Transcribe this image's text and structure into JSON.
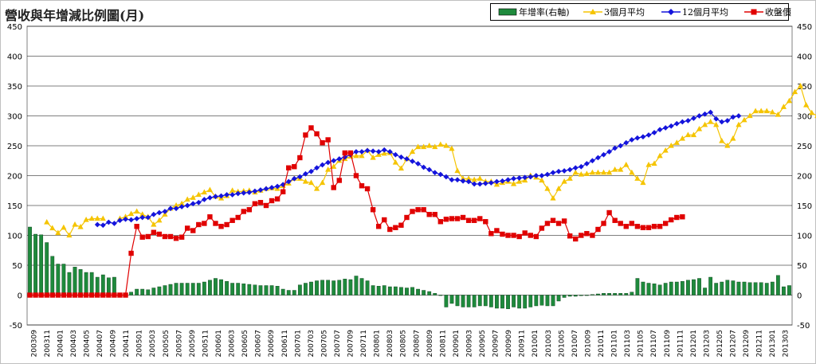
{
  "chart_data": {
    "type": "bar+line",
    "title": "營收與年增減比例圖(月)",
    "ylim": [
      -50,
      450
    ],
    "yticks": [
      -50,
      0,
      50,
      100,
      150,
      200,
      250,
      300,
      350,
      400,
      450
    ],
    "grid": true,
    "legend_position": "top-right",
    "colors": {
      "bar": "#1e8a3c",
      "ma3": "#f5c400",
      "ma12": "#1414dc",
      "price": "#e00000"
    },
    "x_labels": [
      "200309",
      "200311",
      "200401",
      "200403",
      "200405",
      "200407",
      "200409",
      "200411",
      "200501",
      "200503",
      "200505",
      "200507",
      "200509",
      "200511",
      "200601",
      "200603",
      "200605",
      "200607",
      "200609",
      "200611",
      "200701",
      "200703",
      "200705",
      "200707",
      "200709",
      "200711",
      "200801",
      "200803",
      "200805",
      "200807",
      "200809",
      "200811",
      "200901",
      "200903",
      "200905",
      "200907",
      "200909",
      "200911",
      "201001",
      "201003",
      "201005",
      "201007",
      "201009",
      "201011",
      "201101",
      "201103",
      "201105",
      "201107",
      "201109",
      "201111",
      "201201",
      "201203",
      "201205",
      "201207",
      "201209",
      "201211",
      "201301",
      "201303"
    ],
    "series": [
      {
        "name": "年增率(右軸)",
        "kind": "bar",
        "values": [
          114,
          102,
          101,
          88,
          65,
          52,
          52,
          38,
          47,
          43,
          38,
          38,
          30,
          34,
          29,
          30,
          0,
          0,
          5,
          10,
          10,
          9,
          12,
          14,
          16,
          18,
          20,
          20,
          20,
          20,
          20,
          22,
          25,
          28,
          26,
          23,
          20,
          20,
          19,
          18,
          17,
          16,
          16,
          16,
          15,
          10,
          8,
          8,
          17,
          20,
          22,
          24,
          25,
          25,
          24,
          25,
          27,
          26,
          32,
          28,
          24,
          16,
          15,
          16,
          14,
          14,
          13,
          12,
          13,
          10,
          8,
          6,
          3,
          0,
          -20,
          -14,
          -18,
          -20,
          -20,
          -20,
          -18,
          -18,
          -20,
          -22,
          -22,
          -23,
          -20,
          -22,
          -22,
          -20,
          -18,
          -17,
          -18,
          -18,
          -10,
          -4,
          -2,
          -2,
          -1,
          0,
          1,
          2,
          3,
          3,
          3,
          3,
          3,
          5,
          28,
          22,
          20,
          19,
          17,
          20,
          22,
          22,
          23,
          25,
          26,
          28,
          12,
          30,
          20,
          22,
          25,
          24,
          22,
          22,
          21,
          21,
          21,
          20,
          22,
          33,
          14,
          16
        ]
      },
      {
        "name": "3個月平均",
        "kind": "line",
        "values": [
          null,
          null,
          null,
          122,
          112,
          104,
          113,
          100,
          118,
          114,
          126,
          128,
          128,
          128,
          null,
          null,
          128,
          131,
          136,
          140,
          135,
          131,
          118,
          125,
          135,
          145,
          150,
          153,
          160,
          163,
          168,
          172,
          176,
          165,
          162,
          166,
          175,
          173,
          174,
          175,
          172,
          175,
          178,
          179,
          178,
          183,
          187,
          195,
          195,
          190,
          188,
          178,
          188,
          210,
          215,
          225,
          228,
          232,
          233,
          233,
          242,
          230,
          235,
          237,
          238,
          222,
          212,
          228,
          240,
          248,
          248,
          250,
          248,
          252,
          250,
          245,
          208,
          195,
          195,
          193,
          195,
          190,
          190,
          185,
          188,
          190,
          186,
          190,
          192,
          200,
          197,
          192,
          178,
          162,
          178,
          190,
          195,
          205,
          202,
          203,
          205,
          205,
          205,
          205,
          210,
          210,
          218,
          205,
          195,
          188,
          218,
          220,
          233,
          242,
          250,
          255,
          262,
          268,
          268,
          278,
          285,
          290,
          285,
          258,
          250,
          262,
          285,
          293,
          300,
          308,
          308,
          308,
          306,
          302,
          315,
          325,
          340,
          350,
          318,
          305,
          300
        ]
      },
      {
        "name": "12個月平均",
        "kind": "line",
        "values": [
          null,
          null,
          null,
          null,
          null,
          null,
          null,
          null,
          null,
          null,
          null,
          null,
          118,
          117,
          122,
          120,
          125,
          127,
          126,
          128,
          130,
          130,
          135,
          138,
          140,
          145,
          145,
          148,
          150,
          153,
          155,
          160,
          163,
          165,
          166,
          168,
          168,
          170,
          171,
          172,
          174,
          176,
          178,
          180,
          182,
          185,
          190,
          195,
          198,
          203,
          207,
          213,
          218,
          222,
          225,
          228,
          231,
          235,
          240,
          240,
          242,
          241,
          240,
          243,
          240,
          235,
          231,
          228,
          224,
          220,
          214,
          210,
          205,
          202,
          198,
          193,
          193,
          191,
          190,
          186,
          186,
          187,
          188,
          190,
          191,
          193,
          195,
          196,
          197,
          198,
          200,
          200,
          202,
          205,
          207,
          208,
          210,
          213,
          215,
          220,
          225,
          230,
          235,
          240,
          246,
          250,
          255,
          260,
          263,
          265,
          268,
          272,
          277,
          280,
          283,
          287,
          290,
          292,
          296,
          300,
          303,
          306,
          295,
          290,
          292,
          298,
          300
        ]
      },
      {
        "name": "收盤價",
        "kind": "line",
        "values": [
          0,
          0,
          0,
          0,
          0,
          0,
          0,
          0,
          0,
          0,
          0,
          0,
          0,
          0,
          0,
          0,
          0,
          0,
          70,
          115,
          97,
          98,
          105,
          102,
          98,
          98,
          95,
          97,
          112,
          108,
          118,
          120,
          131,
          120,
          115,
          118,
          125,
          130,
          140,
          143,
          153,
          155,
          150,
          158,
          161,
          173,
          213,
          215,
          230,
          268,
          280,
          270,
          255,
          260,
          180,
          192,
          238,
          238,
          200,
          183,
          178,
          143,
          115,
          126,
          110,
          113,
          117,
          130,
          140,
          143,
          143,
          135,
          135,
          123,
          127,
          128,
          128,
          130,
          125,
          125,
          128,
          123,
          103,
          108,
          102,
          100,
          100,
          98,
          104,
          100,
          98,
          112,
          120,
          125,
          120,
          124,
          99,
          94,
          100,
          103,
          100,
          110,
          120,
          138,
          125,
          120,
          115,
          120,
          115,
          113,
          113,
          115,
          115,
          120,
          126,
          130,
          131
        ]
      }
    ]
  }
}
